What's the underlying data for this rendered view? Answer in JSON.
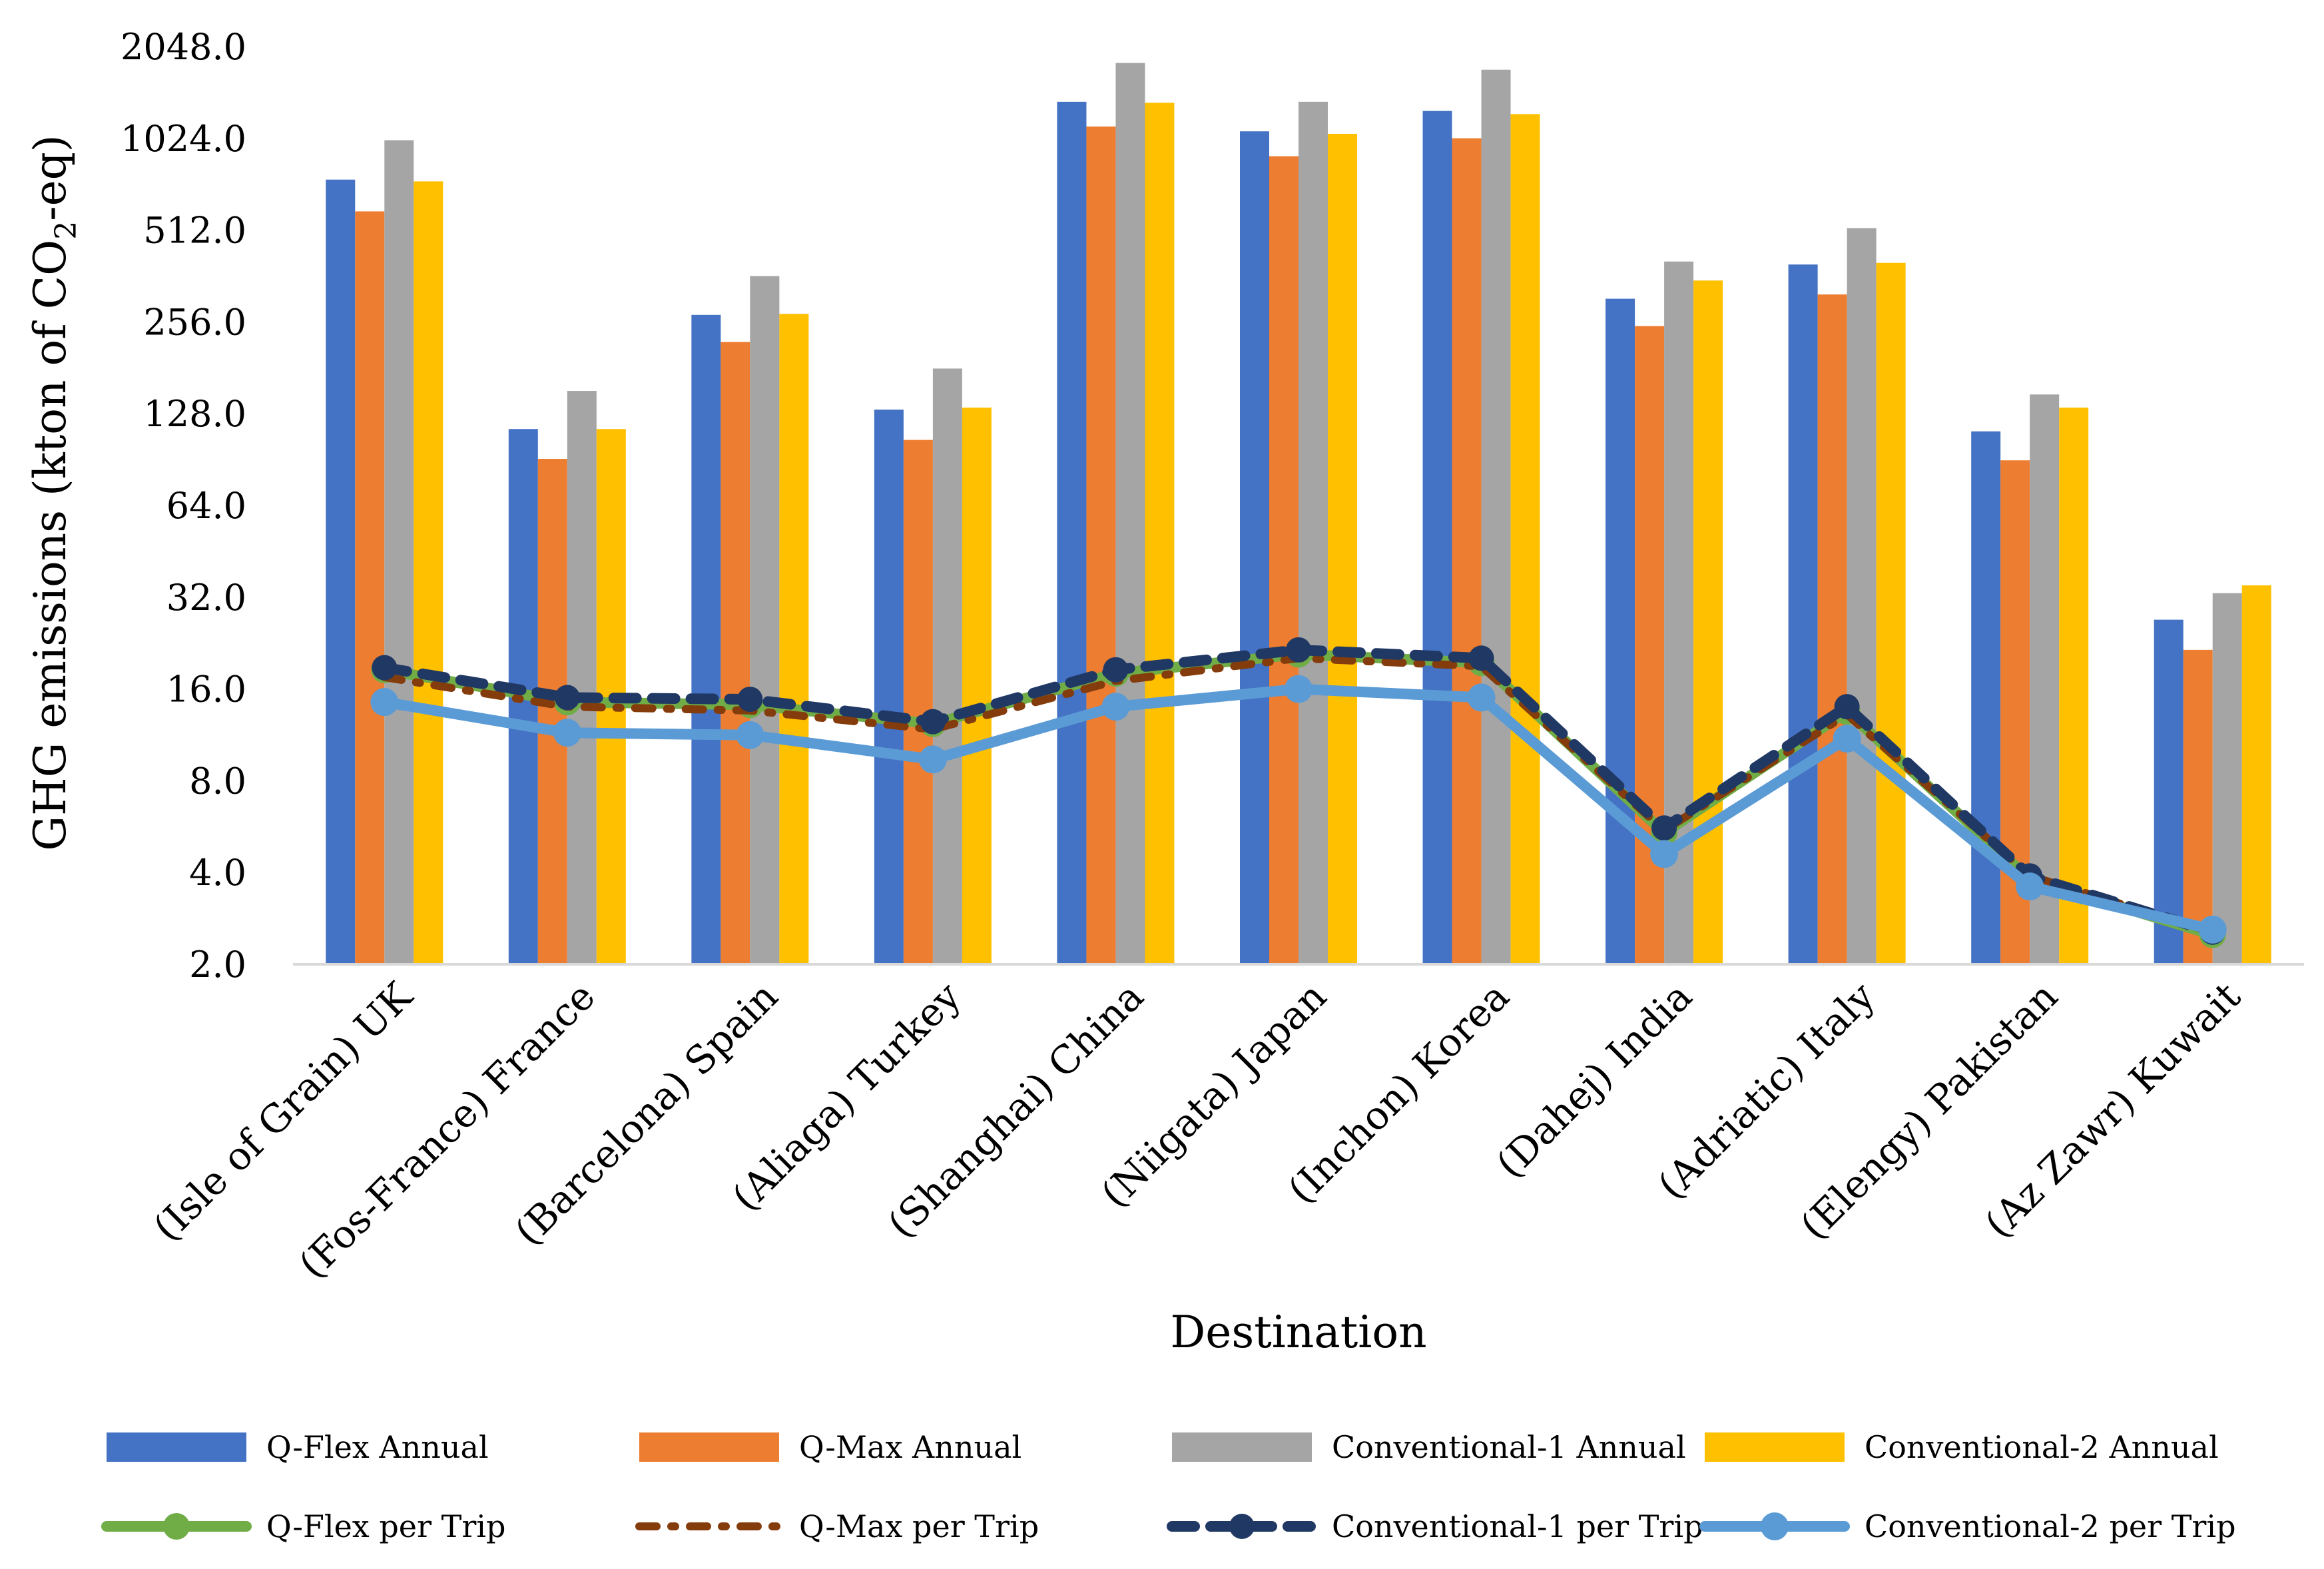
{
  "chart_data": {
    "type": "bar",
    "scale": "log2",
    "ylim": [
      2.0,
      2048.0
    ],
    "yticks": [
      "2.0",
      "4.0",
      "8.0",
      "16.0",
      "32.0",
      "64.0",
      "128.0",
      "256.0",
      "512.0",
      "1024.0",
      "2048.0"
    ],
    "ytick_values": [
      2,
      4,
      8,
      16,
      32,
      64,
      128,
      256,
      512,
      1024,
      2048
    ],
    "ylabel_main": "GHG emissions (kton of CO",
    "ylabel_sub": "2",
    "ylabel_end": "-eq)",
    "xlabel": "Destination",
    "categories": [
      "(Isle of Grain) UK",
      "(Fos-France) France",
      "(Barcelona) Spain",
      "(Aliaga) Turkey",
      "(Shanghai) China",
      "(Niigata) Japan",
      "(Inchon) Korea",
      "(Dahej) India",
      "(Adriatic) Italy",
      "(Elengy) Pakistan",
      "(Az Zawr) Kuwait"
    ],
    "bar_series": [
      {
        "name": "Q-Flex Annual",
        "color": "#4472C4",
        "values": [
          750,
          114,
          270,
          132,
          1350,
          1080,
          1260,
          305,
          395,
          112,
          27
        ]
      },
      {
        "name": "Q-Max Annual",
        "color": "#ED7D31",
        "values": [
          590,
          91,
          220,
          105,
          1120,
          895,
          1025,
          248,
          315,
          90,
          21.5
        ]
      },
      {
        "name": "Conventional-1 Annual",
        "color": "#A5A5A5",
        "values": [
          1010,
          152,
          362,
          180,
          1810,
          1350,
          1720,
          404,
          520,
          148,
          33
        ]
      },
      {
        "name": "Conventional-2 Annual",
        "color": "#FFC000",
        "values": [
          740,
          114,
          272,
          134,
          1340,
          1060,
          1230,
          350,
          400,
          134,
          35
        ]
      }
    ],
    "line_series": [
      {
        "name": "Q-Flex per Trip",
        "color": "#70AD47",
        "style": "solid-marker",
        "values": [
          18.5,
          14.5,
          14.2,
          12.3,
          18.0,
          20.8,
          19.5,
          5.4,
          13.5,
          3.8,
          2.5
        ]
      },
      {
        "name": "Q-Max per Trip",
        "color": "#843C0C",
        "style": "dash-dot",
        "values": [
          17.5,
          14.0,
          13.6,
          11.8,
          17.0,
          20.2,
          19.0,
          5.5,
          13.2,
          3.9,
          2.55
        ]
      },
      {
        "name": "Conventional-1 per Trip",
        "color": "#203864",
        "style": "dash-marker",
        "values": [
          18.8,
          15.0,
          14.8,
          12.5,
          18.5,
          21.5,
          20.2,
          5.6,
          14.0,
          3.9,
          2.55
        ]
      },
      {
        "name": "Conventional-2 per Trip",
        "color": "#5B9BD5",
        "style": "solid-marker",
        "values": [
          14.5,
          11.5,
          11.3,
          9.4,
          14.0,
          16.0,
          15.0,
          4.6,
          11.0,
          3.6,
          2.6
        ]
      }
    ]
  }
}
